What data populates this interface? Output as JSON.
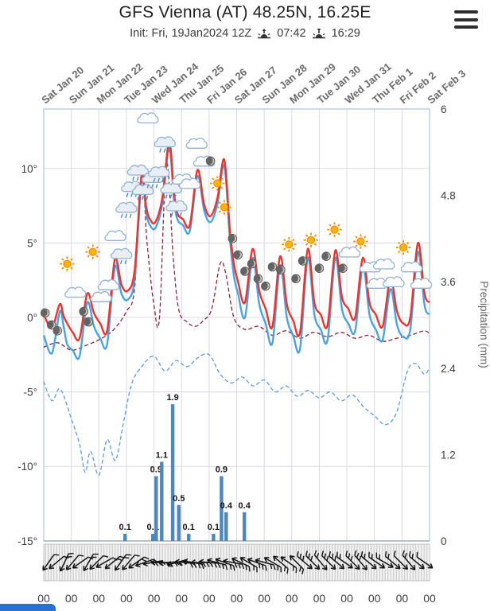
{
  "header": {
    "title": "GFS Vienna (AT) 48.25N, 16.25E",
    "init_label": "Init: Fri, 19Jan2024 12Z",
    "sunrise_time": "07:42",
    "sunset_time": "16:29"
  },
  "chart_data": {
    "type": "line",
    "title": "GFS Vienna (AT) 48.25N, 16.25E",
    "x_axis": {
      "days": [
        "Sat Jan 20",
        "Sun Jan 21",
        "Mon Jan 22",
        "Tue Jan 23",
        "Wed Jan 24",
        "Thu Jan 25",
        "Fri Jan 26",
        "Sat Jan 27",
        "Sun Jan 28",
        "Mon Jan 29",
        "Tue Jan 30",
        "Wed Jan 31",
        "Thu Feb 1",
        "Fri Feb 2",
        "Sat Feb 3"
      ],
      "hour_labels": [
        "00",
        "00",
        "00",
        "00",
        "00",
        "00",
        "00",
        "00",
        "00",
        "00",
        "00",
        "00",
        "00",
        "00",
        "00"
      ]
    },
    "y_axis_left": {
      "values": [
        10,
        5,
        0,
        -5,
        -10,
        -15
      ],
      "labels": [
        "10°",
        "5°",
        "0°",
        "-5°",
        "-10°",
        "-15°"
      ],
      "range": [
        -15,
        14
      ]
    },
    "y_axis_right": {
      "label": "Precipitation (mm)",
      "values": [
        6,
        4.8,
        3.6,
        2.4,
        1.2,
        0
      ],
      "labels": [
        "6",
        "4.8",
        "3.6",
        "2.4",
        "1.2",
        "0"
      ],
      "range": [
        0,
        6
      ]
    },
    "series": [
      {
        "name": "blue-dashed",
        "color": "#5e9bd6",
        "style": "dashed",
        "width": 1.3,
        "points": [
          [
            0,
            -4.3
          ],
          [
            0.3,
            -5.6
          ],
          [
            0.6,
            -4.8
          ],
          [
            1,
            -6.8
          ],
          [
            1.3,
            -8.5
          ],
          [
            1.5,
            -10.4
          ],
          [
            1.7,
            -9
          ],
          [
            2,
            -10.6
          ],
          [
            2.3,
            -8.2
          ],
          [
            2.6,
            -9.6
          ],
          [
            2.9,
            -7
          ],
          [
            3.2,
            -4.4
          ],
          [
            3.6,
            -3.2
          ],
          [
            4,
            -2.6
          ],
          [
            4.4,
            -3.6
          ],
          [
            4.8,
            -2.9
          ],
          [
            5.2,
            -3.3
          ],
          [
            5.6,
            -2.7
          ],
          [
            6,
            -2.5
          ],
          [
            6.4,
            -3.8
          ],
          [
            6.8,
            -4.4
          ],
          [
            7.2,
            -4
          ],
          [
            7.6,
            -4.6
          ],
          [
            8,
            -4.2
          ],
          [
            8.4,
            -5
          ],
          [
            8.8,
            -4.6
          ],
          [
            9.2,
            -5.3
          ],
          [
            9.6,
            -4.9
          ],
          [
            10,
            -5.4
          ],
          [
            10.4,
            -5
          ],
          [
            10.8,
            -5.6
          ],
          [
            11.2,
            -5.2
          ],
          [
            11.6,
            -6
          ],
          [
            12,
            -6.6
          ],
          [
            12.4,
            -7.2
          ],
          [
            12.8,
            -6.4
          ],
          [
            13.2,
            -3.6
          ],
          [
            13.5,
            -3.1
          ],
          [
            13.8,
            -3.8
          ],
          [
            14,
            -3.4
          ]
        ]
      },
      {
        "name": "dark-red-dashed",
        "color": "#8a2430",
        "style": "dashed",
        "width": 1.3,
        "points": [
          [
            0,
            -2
          ],
          [
            0.5,
            -1.7
          ],
          [
            1,
            -2.2
          ],
          [
            1.5,
            -1.9
          ],
          [
            2,
            -1.5
          ],
          [
            2.5,
            -0.9
          ],
          [
            3,
            0.4
          ],
          [
            3.3,
            2
          ],
          [
            3.55,
            9.7
          ],
          [
            3.75,
            5
          ],
          [
            4,
            0.8
          ],
          [
            4.2,
            0
          ],
          [
            4.45,
            10.4
          ],
          [
            4.7,
            4
          ],
          [
            4.9,
            0.5
          ],
          [
            5.2,
            -0.3
          ],
          [
            5.5,
            -0.6
          ],
          [
            5.8,
            -0.2
          ],
          [
            6.1,
            0.6
          ],
          [
            6.4,
            3.6
          ],
          [
            6.6,
            3
          ],
          [
            6.9,
            0
          ],
          [
            7.3,
            -0.8
          ],
          [
            7.8,
            -0.6
          ],
          [
            8.3,
            -1.2
          ],
          [
            8.8,
            -0.9
          ],
          [
            9.3,
            -1.4
          ],
          [
            9.8,
            -1
          ],
          [
            10.3,
            -1.3
          ],
          [
            10.8,
            -1
          ],
          [
            11.3,
            -1.4
          ],
          [
            11.8,
            -1.2
          ],
          [
            12.3,
            -1.6
          ],
          [
            12.8,
            -1.4
          ],
          [
            13.3,
            -1.2
          ],
          [
            13.8,
            -0.9
          ],
          [
            14,
            -1.1
          ]
        ]
      },
      {
        "name": "temperature-blue",
        "color": "#4aa3e0",
        "style": "solid",
        "width": 2.4,
        "points": [
          [
            0,
            -1.2
          ],
          [
            0.3,
            -2.4
          ],
          [
            0.58,
            0.4
          ],
          [
            0.72,
            -0.6
          ],
          [
            0.85,
            -1.8
          ],
          [
            1.05,
            -2.2
          ],
          [
            1.3,
            -2.6
          ],
          [
            1.58,
            1
          ],
          [
            1.82,
            -0.6
          ],
          [
            2.05,
            -1.4
          ],
          [
            2.3,
            -1.8
          ],
          [
            2.58,
            3.4
          ],
          [
            2.82,
            1.6
          ],
          [
            3.05,
            1.2
          ],
          [
            3.3,
            2.6
          ],
          [
            3.55,
            9.2
          ],
          [
            3.72,
            7
          ],
          [
            3.85,
            6.2
          ],
          [
            4.05,
            6
          ],
          [
            4.3,
            7.6
          ],
          [
            4.55,
            11.4
          ],
          [
            4.72,
            8
          ],
          [
            4.85,
            6.6
          ],
          [
            5.05,
            6.2
          ],
          [
            5.3,
            5.8
          ],
          [
            5.58,
            9.5
          ],
          [
            5.82,
            7.2
          ],
          [
            6.05,
            6.4
          ],
          [
            6.3,
            7.6
          ],
          [
            6.55,
            10.2
          ],
          [
            6.75,
            5.4
          ],
          [
            6.9,
            2.8
          ],
          [
            7.05,
            1.6
          ],
          [
            7.3,
            0
          ],
          [
            7.58,
            4
          ],
          [
            7.82,
            0.9
          ],
          [
            8.05,
            -0.4
          ],
          [
            8.3,
            -1.7
          ],
          [
            8.58,
            3.5
          ],
          [
            8.82,
            0
          ],
          [
            9.05,
            -1.2
          ],
          [
            9.3,
            -2.1
          ],
          [
            9.58,
            4
          ],
          [
            9.82,
            0.2
          ],
          [
            10.05,
            -0.8
          ],
          [
            10.3,
            -1.5
          ],
          [
            10.58,
            4
          ],
          [
            10.82,
            0.6
          ],
          [
            11.05,
            -0.4
          ],
          [
            11.3,
            -0.9
          ],
          [
            11.58,
            3.4
          ],
          [
            11.82,
            0.2
          ],
          [
            12.05,
            -0.8
          ],
          [
            12.3,
            -1.5
          ],
          [
            12.58,
            1.9
          ],
          [
            12.82,
            -0.5
          ],
          [
            13.05,
            -1.3
          ],
          [
            13.3,
            -0.8
          ],
          [
            13.58,
            4.4
          ],
          [
            13.82,
            0.8
          ],
          [
            14,
            0.2
          ]
        ]
      },
      {
        "name": "temperature-red",
        "color": "#e8352e",
        "style": "solid",
        "width": 2.4,
        "points": [
          [
            0,
            0.2
          ],
          [
            0.3,
            -0.7
          ],
          [
            0.58,
            0.9
          ],
          [
            0.72,
            0.1
          ],
          [
            0.85,
            -0.4
          ],
          [
            1.05,
            -1
          ],
          [
            1.3,
            -1.4
          ],
          [
            1.58,
            1.6
          ],
          [
            1.82,
            0.3
          ],
          [
            2.05,
            -0.4
          ],
          [
            2.3,
            -0.9
          ],
          [
            2.58,
            3.9
          ],
          [
            2.82,
            2.2
          ],
          [
            3.05,
            1.8
          ],
          [
            3.3,
            3.2
          ],
          [
            3.55,
            9.6
          ],
          [
            3.72,
            7.4
          ],
          [
            3.85,
            6.6
          ],
          [
            4.05,
            6.4
          ],
          [
            4.3,
            8
          ],
          [
            4.55,
            11.8
          ],
          [
            4.72,
            8.5
          ],
          [
            4.85,
            7
          ],
          [
            5.05,
            6.6
          ],
          [
            5.3,
            6.2
          ],
          [
            5.58,
            9.9
          ],
          [
            5.82,
            7.6
          ],
          [
            6.05,
            6.8
          ],
          [
            6.3,
            8
          ],
          [
            6.55,
            10.6
          ],
          [
            6.75,
            6
          ],
          [
            6.9,
            3.6
          ],
          [
            7.05,
            2.4
          ],
          [
            7.3,
            1
          ],
          [
            7.58,
            4.6
          ],
          [
            7.82,
            1.8
          ],
          [
            8.05,
            0.6
          ],
          [
            8.3,
            -0.6
          ],
          [
            8.58,
            4.1
          ],
          [
            8.82,
            0.9
          ],
          [
            9.05,
            -0.2
          ],
          [
            9.3,
            -1
          ],
          [
            9.58,
            4.6
          ],
          [
            9.82,
            1
          ],
          [
            10.05,
            0.2
          ],
          [
            10.3,
            -0.5
          ],
          [
            10.58,
            4.5
          ],
          [
            10.82,
            1.4
          ],
          [
            11.05,
            0.6
          ],
          [
            11.3,
            0
          ],
          [
            11.58,
            4
          ],
          [
            11.82,
            1
          ],
          [
            12.05,
            0.2
          ],
          [
            12.3,
            -0.6
          ],
          [
            12.58,
            2.6
          ],
          [
            12.82,
            0.4
          ],
          [
            13.05,
            -0.4
          ],
          [
            13.3,
            0
          ],
          [
            13.58,
            5
          ],
          [
            13.82,
            1.6
          ],
          [
            14,
            1
          ]
        ]
      }
    ],
    "precipitation_bars": {
      "color": "#4e86c0",
      "bars": [
        [
          2.95,
          0.1
        ],
        [
          3.96,
          0.1
        ],
        [
          4.08,
          0.9
        ],
        [
          4.28,
          1.1
        ],
        [
          4.68,
          1.9
        ],
        [
          4.9,
          0.5
        ],
        [
          5.26,
          0.1
        ],
        [
          6.16,
          0.1
        ],
        [
          6.45,
          0.9
        ],
        [
          6.62,
          0.4
        ],
        [
          7.28,
          0.4
        ]
      ]
    },
    "weather_icons": [
      [
        0.05,
        0.3,
        "moon"
      ],
      [
        0.28,
        -0.5,
        "moon"
      ],
      [
        0.5,
        -0.9,
        "moon"
      ],
      [
        0.85,
        3.6,
        "sun"
      ],
      [
        1.15,
        1.6,
        "cloud"
      ],
      [
        1.45,
        0.4,
        "moon"
      ],
      [
        1.62,
        -0.3,
        "moon"
      ],
      [
        1.78,
        4.4,
        "sun"
      ],
      [
        2.08,
        1.3,
        "cloud"
      ],
      [
        2.35,
        2.1,
        "cloud"
      ],
      [
        2.6,
        5.4,
        "cloud"
      ],
      [
        2.82,
        4.2,
        "rain-cloud"
      ],
      [
        3,
        7.3,
        "rain-cloud"
      ],
      [
        3.2,
        8.7,
        "rain-cloud"
      ],
      [
        3.42,
        9.8,
        "rain-cloud"
      ],
      [
        3.6,
        8.5,
        "rain-cloud"
      ],
      [
        3.78,
        13.3,
        "cloud"
      ],
      [
        3.95,
        9.3,
        "rain-cloud"
      ],
      [
        4.18,
        9.7,
        "rain-cloud"
      ],
      [
        4.4,
        11.7,
        "rain-cloud"
      ],
      [
        4.62,
        8.6,
        "rain-cloud"
      ],
      [
        4.82,
        7.4,
        "rain-cloud"
      ],
      [
        5.05,
        9.2,
        "cloud"
      ],
      [
        5.3,
        8.9,
        "cloud"
      ],
      [
        5.55,
        11.6,
        "cloud"
      ],
      [
        5.82,
        10.4,
        "cloud"
      ],
      [
        6.05,
        10.5,
        "moon"
      ],
      [
        6.3,
        9,
        "sun"
      ],
      [
        6.55,
        7.4,
        "sun"
      ],
      [
        6.85,
        5.3,
        "moon"
      ],
      [
        7.05,
        4.2,
        "moon"
      ],
      [
        7.3,
        3.1,
        "moon"
      ],
      [
        7.55,
        3.6,
        "moon"
      ],
      [
        7.78,
        2.6,
        "moon"
      ],
      [
        8.05,
        2.1,
        "moon"
      ],
      [
        8.3,
        3.4,
        "moon"
      ],
      [
        8.6,
        3.2,
        "moon"
      ],
      [
        8.9,
        4.9,
        "sun"
      ],
      [
        9.15,
        2.6,
        "moon"
      ],
      [
        9.4,
        3.8,
        "moon"
      ],
      [
        9.7,
        5.2,
        "sun"
      ],
      [
        10,
        3.3,
        "moon"
      ],
      [
        10.25,
        4.1,
        "moon"
      ],
      [
        10.55,
        5.9,
        "sun"
      ],
      [
        10.85,
        3.3,
        "moon"
      ],
      [
        11.1,
        4.3,
        "cloud"
      ],
      [
        11.5,
        5.1,
        "sun"
      ],
      [
        11.85,
        3.3,
        "cloud"
      ],
      [
        12.1,
        2.2,
        "cloud"
      ],
      [
        12.35,
        3.5,
        "cloud"
      ],
      [
        12.7,
        2.3,
        "cloud"
      ],
      [
        13.05,
        4.7,
        "sun"
      ],
      [
        13.35,
        3.3,
        "cloud"
      ],
      [
        13.7,
        2.2,
        "cloud"
      ]
    ],
    "wind_barbs": {
      "color": "#141414",
      "angles": [
        35,
        50,
        25,
        40,
        55,
        30,
        45,
        60,
        50,
        35,
        40,
        55,
        70,
        80,
        90,
        85,
        75,
        95,
        100,
        90,
        95,
        105,
        110,
        100,
        115,
        120,
        110,
        105,
        120,
        130,
        125,
        135,
        310,
        315,
        320,
        315,
        310,
        305,
        315,
        320,
        310,
        305,
        300,
        310,
        315,
        320,
        310,
        305
      ],
      "feathers": [
        1,
        1,
        2,
        1,
        1,
        2,
        1,
        1,
        2,
        2,
        1,
        2,
        2,
        3,
        2,
        2,
        3,
        2,
        2,
        3,
        2,
        2,
        2,
        3,
        2,
        2,
        3,
        2,
        2,
        2,
        2,
        2,
        3,
        3,
        2,
        3,
        3,
        2,
        3,
        3,
        2,
        2,
        2,
        2,
        1,
        2,
        2,
        1
      ]
    },
    "colors": {
      "bars": "#4e86c0",
      "grid": "#d9d9e8",
      "hgrid": "#dadae4",
      "frame": "#aec6dd",
      "baseline": "#9aa7b5"
    }
  }
}
